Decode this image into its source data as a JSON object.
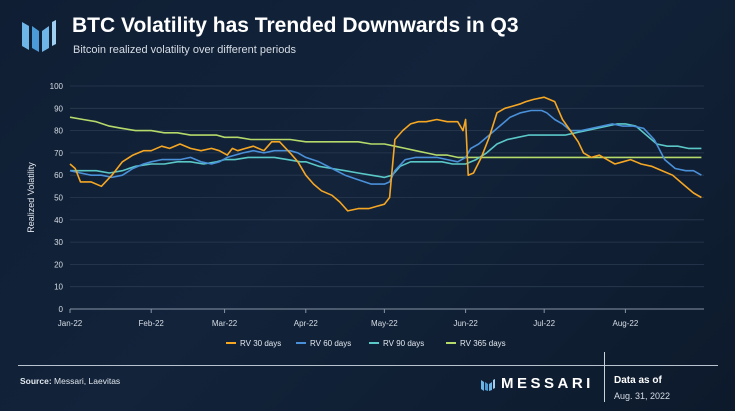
{
  "header": {
    "title": "BTC Volatility has Trended Downwards in Q3",
    "subtitle": "Bitcoin realized volatility over different periods"
  },
  "footer": {
    "source_label": "Source:",
    "source_text": "Messari, Laevitas",
    "brand": "MESSARI",
    "asof_label": "Data as of",
    "asof_date": "Aug. 31, 2022"
  },
  "colors": {
    "background": "#12233a",
    "grid": "#2a3a50",
    "text": "#ffffff"
  },
  "chart_data": {
    "type": "line",
    "ylabel": "Realized Volatility",
    "xlabel": "",
    "ylim": [
      0,
      100
    ],
    "yticks": [
      0,
      10,
      20,
      30,
      40,
      50,
      60,
      70,
      80,
      90,
      100
    ],
    "xlim": [
      0,
      242
    ],
    "xtick_labels": [
      "Jan-22",
      "Feb-22",
      "Mar-22",
      "Apr-22",
      "May-22",
      "Jun-22",
      "Jul-22",
      "Aug-22"
    ],
    "xtick_values": [
      0,
      31,
      59,
      90,
      120,
      151,
      181,
      212
    ],
    "grid": "horizontal",
    "legend_position": "bottom",
    "series": [
      {
        "name": "RV 30 days",
        "color": "#f5a623",
        "x": [
          0,
          2,
          4,
          8,
          12,
          16,
          20,
          24,
          28,
          31,
          35,
          38,
          42,
          46,
          50,
          54,
          57,
          60,
          62,
          64,
          67,
          70,
          74,
          77,
          80,
          84,
          87,
          90,
          93,
          96,
          100,
          103,
          106,
          110,
          114,
          117,
          120,
          122,
          124,
          127,
          130,
          133,
          136,
          140,
          144,
          148,
          150,
          151,
          152,
          154,
          157,
          160,
          163,
          166,
          169,
          172,
          174,
          177,
          181,
          185,
          188,
          191,
          194,
          196,
          199,
          202,
          205,
          208,
          211,
          214,
          218,
          222,
          226,
          230,
          234,
          238,
          241
        ],
        "y": [
          65,
          63,
          57,
          57,
          55,
          60,
          66,
          69,
          71,
          71,
          73,
          72,
          74,
          72,
          71,
          72,
          71,
          69,
          72,
          71,
          72,
          73,
          71,
          75,
          75,
          70,
          66,
          60,
          56,
          53,
          51,
          48,
          44,
          45,
          45,
          46,
          47,
          50,
          76,
          80,
          83,
          84,
          84,
          85,
          84,
          84,
          80,
          85,
          60,
          61,
          68,
          77,
          88,
          90,
          91,
          92,
          93,
          94,
          95,
          93,
          85,
          80,
          75,
          70,
          68,
          69,
          67,
          65,
          66,
          67,
          65,
          64,
          62,
          60,
          56,
          52,
          50
        ]
      },
      {
        "name": "RV 60 days",
        "color": "#4a90d9",
        "x": [
          0,
          4,
          8,
          12,
          16,
          20,
          24,
          28,
          31,
          35,
          38,
          42,
          46,
          50,
          54,
          57,
          60,
          63,
          66,
          70,
          74,
          78,
          81,
          84,
          87,
          90,
          95,
          100,
          105,
          110,
          115,
          120,
          122,
          124,
          128,
          132,
          136,
          140,
          144,
          148,
          151,
          153,
          156,
          160,
          164,
          168,
          172,
          176,
          180,
          182,
          185,
          188,
          191,
          195,
          199,
          203,
          207,
          211,
          215,
          219,
          223,
          227,
          231,
          235,
          238,
          241
        ],
        "y": [
          62,
          61,
          60,
          60,
          59,
          60,
          63,
          65,
          66,
          67,
          67,
          67,
          68,
          66,
          65,
          66,
          68,
          69,
          70,
          71,
          70,
          71,
          71,
          71,
          70,
          68,
          66,
          63,
          60,
          58,
          56,
          56,
          57,
          62,
          67,
          68,
          68,
          68,
          67,
          66,
          68,
          72,
          74,
          78,
          82,
          86,
          88,
          89,
          89,
          88,
          85,
          83,
          80,
          80,
          81,
          82,
          83,
          82,
          82,
          81,
          76,
          67,
          63,
          62,
          62,
          60
        ]
      },
      {
        "name": "RV 90 days",
        "color": "#5bc8c8",
        "x": [
          0,
          5,
          10,
          15,
          20,
          25,
          31,
          36,
          41,
          46,
          51,
          56,
          59,
          63,
          68,
          73,
          78,
          83,
          88,
          90,
          95,
          100,
          105,
          110,
          115,
          120,
          123,
          126,
          130,
          134,
          138,
          142,
          146,
          151,
          155,
          159,
          163,
          167,
          171,
          175,
          179,
          181,
          185,
          189,
          193,
          197,
          201,
          205,
          209,
          212,
          216,
          220,
          224,
          228,
          232,
          236,
          241
        ],
        "y": [
          62,
          62,
          62,
          61,
          62,
          64,
          65,
          65,
          66,
          66,
          65,
          66,
          67,
          67,
          68,
          68,
          68,
          67,
          66,
          66,
          64,
          63,
          62,
          61,
          60,
          59,
          60,
          64,
          66,
          66,
          66,
          66,
          65,
          65,
          67,
          70,
          74,
          76,
          77,
          78,
          78,
          78,
          78,
          78,
          79,
          80,
          81,
          82,
          83,
          83,
          82,
          78,
          74,
          73,
          73,
          72,
          72
        ]
      },
      {
        "name": "RV 365 days",
        "color": "#b5d96a",
        "x": [
          0,
          5,
          10,
          15,
          20,
          25,
          31,
          36,
          41,
          46,
          51,
          56,
          59,
          64,
          69,
          74,
          79,
          84,
          90,
          95,
          100,
          105,
          110,
          115,
          120,
          124,
          128,
          132,
          136,
          140,
          144,
          148,
          151,
          156,
          161,
          166,
          171,
          176,
          181,
          186,
          191,
          196,
          201,
          206,
          212,
          217,
          222,
          227,
          232,
          237,
          241
        ],
        "y": [
          86,
          85,
          84,
          82,
          81,
          80,
          80,
          79,
          79,
          78,
          78,
          78,
          77,
          77,
          76,
          76,
          76,
          76,
          75,
          75,
          75,
          75,
          75,
          74,
          74,
          73,
          72,
          71,
          70,
          69,
          69,
          68,
          68,
          68,
          68,
          68,
          68,
          68,
          68,
          68,
          68,
          68,
          68,
          68,
          68,
          68,
          68,
          68,
          68,
          68,
          68
        ]
      }
    ]
  }
}
